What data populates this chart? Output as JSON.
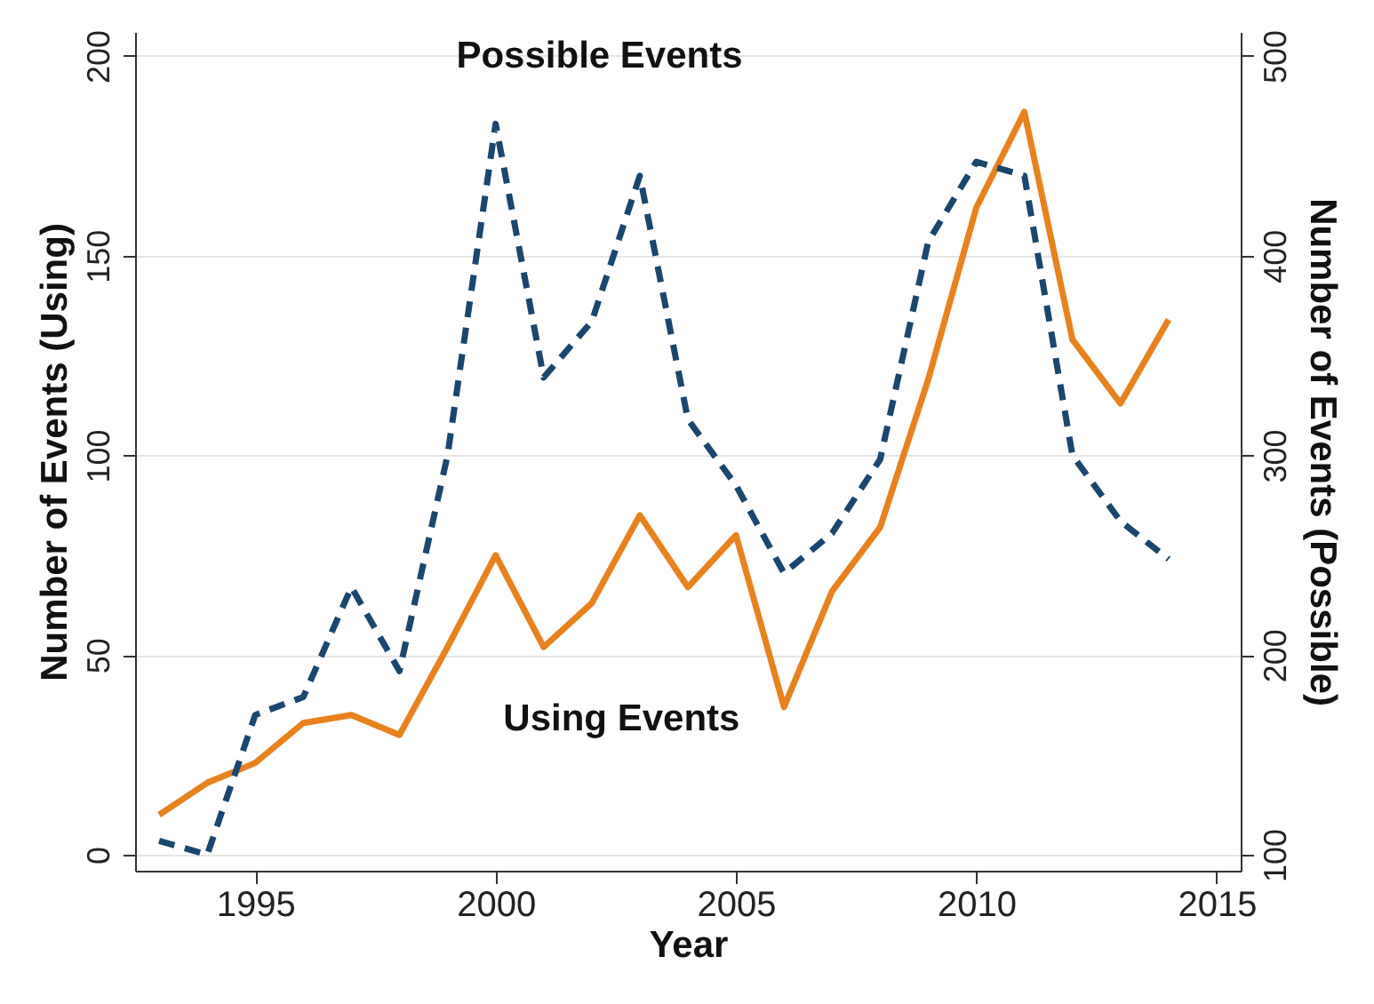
{
  "chart_data": {
    "type": "line",
    "xlabel": "Year",
    "ylabel": "Number of Events (Using)",
    "y2label": "Number of Events (Possible)",
    "x": [
      1993,
      1994,
      1995,
      1996,
      1997,
      1998,
      1999,
      2000,
      2001,
      2002,
      2003,
      2004,
      2005,
      2006,
      2007,
      2008,
      2009,
      2010,
      2011,
      2012,
      2013,
      2014
    ],
    "series": [
      {
        "name": "Using Events",
        "color": "#e8821e",
        "line_style": "solid",
        "values": [
          10,
          18,
          23,
          33,
          35,
          30,
          52,
          75,
          52,
          63,
          85,
          67,
          80,
          37,
          66,
          82,
          119,
          162,
          186,
          129,
          113,
          134
        ]
      },
      {
        "name": "Possible Events",
        "color": "#1b466e",
        "line_style": "dashed",
        "axis": "y2",
        "values": [
          107,
          100,
          170,
          179,
          234,
          192,
          300,
          466,
          339,
          367,
          440,
          318,
          285,
          241,
          261,
          298,
          407,
          447,
          440,
          300,
          267,
          248
        ]
      }
    ],
    "xlim": [
      1992.5,
      2015.5
    ],
    "xticks": [
      1995,
      2000,
      2005,
      2010,
      2015
    ],
    "ylim": [
      -4,
      206
    ],
    "yticks": [
      0,
      50,
      100,
      150,
      200
    ],
    "y2lim": [
      92,
      512
    ],
    "y2ticks": [
      100,
      200,
      300,
      400,
      500
    ],
    "grid": "y",
    "marker": "none"
  }
}
